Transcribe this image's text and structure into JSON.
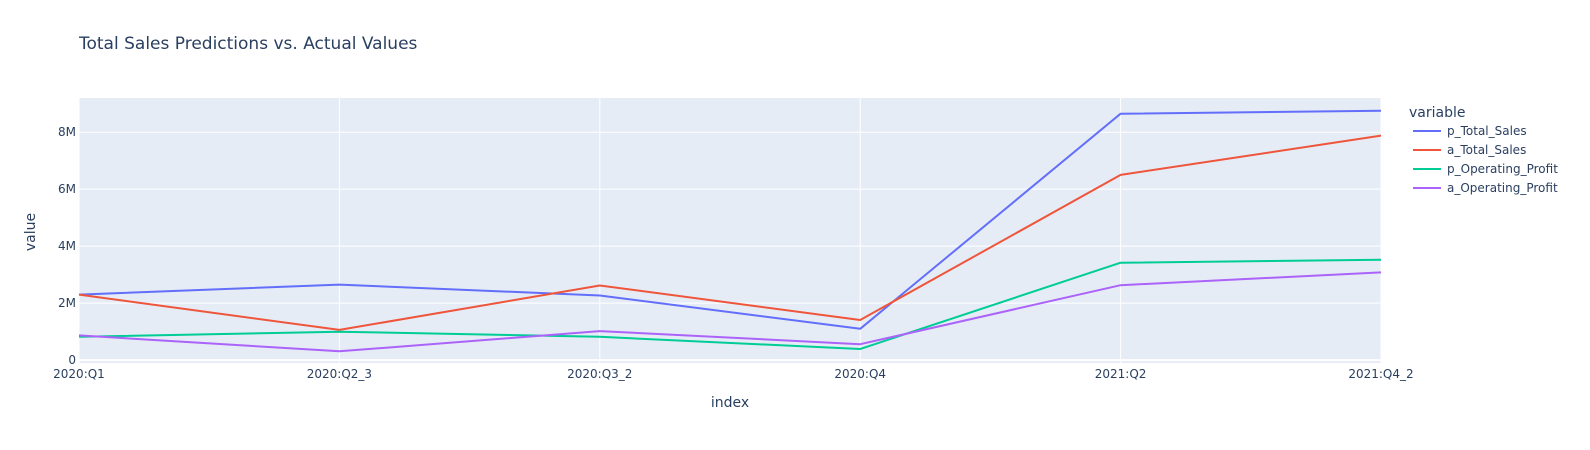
{
  "chart_data": {
    "type": "line",
    "title": "Total Sales Predictions vs. Actual Values",
    "xlabel": "index",
    "ylabel": "value",
    "categories": [
      "2020:Q1",
      "2020:Q2_3",
      "2020:Q3_2",
      "2020:Q4",
      "2021:Q2",
      "2021:Q4_2"
    ],
    "ylim": [
      -100000,
      9200000
    ],
    "yticks": [
      0,
      2000000,
      4000000,
      6000000,
      8000000
    ],
    "ytick_labels": [
      "0",
      "2M",
      "4M",
      "6M",
      "8M"
    ],
    "grid": true,
    "legend_title": "variable",
    "legend_position": "right",
    "plot_background": "#e5ecf6",
    "series": [
      {
        "name": "p_Total_Sales",
        "color": "#636efa",
        "values": [
          2300000,
          2650000,
          2270000,
          1100000,
          8650000,
          8750000
        ]
      },
      {
        "name": "a_Total_Sales",
        "color": "#ef553b",
        "values": [
          2300000,
          1060000,
          2620000,
          1410000,
          6500000,
          7880000
        ]
      },
      {
        "name": "p_Operating_Profit",
        "color": "#00cc96",
        "values": [
          820000,
          1000000,
          820000,
          390000,
          3420000,
          3520000
        ]
      },
      {
        "name": "a_Operating_Profit",
        "color": "#ab63fa",
        "values": [
          870000,
          310000,
          1020000,
          560000,
          2630000,
          3080000
        ]
      }
    ]
  }
}
